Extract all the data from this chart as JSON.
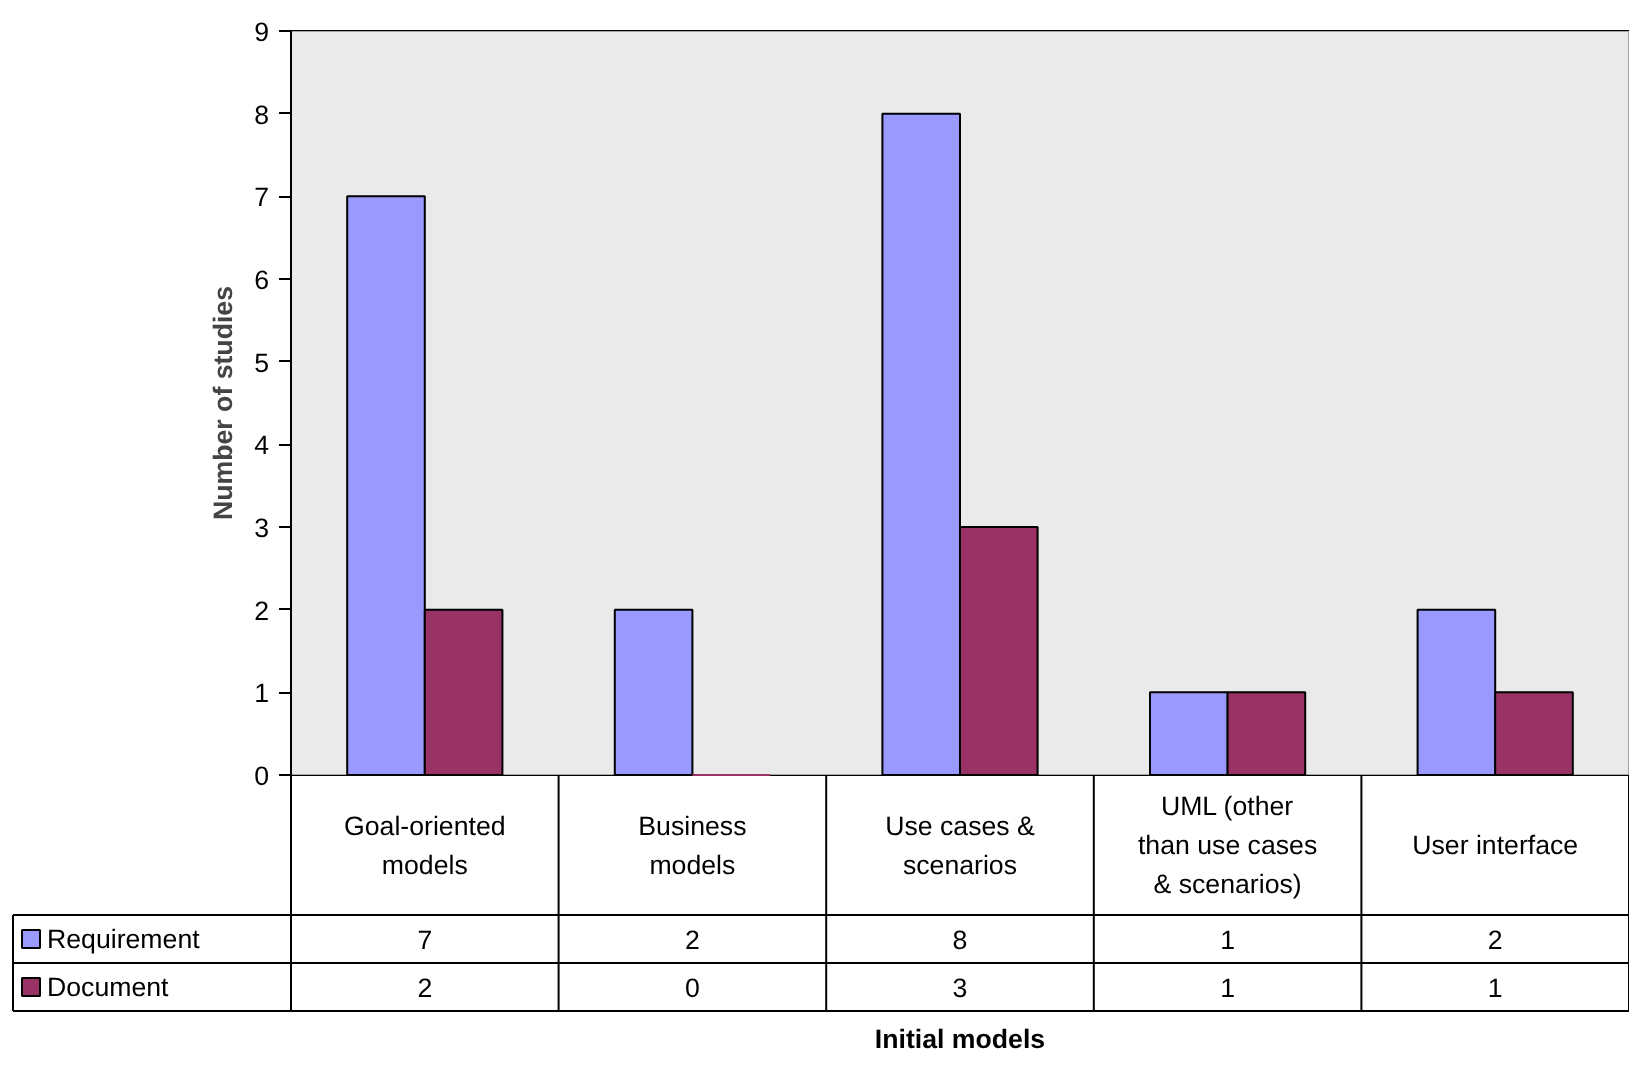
{
  "chart_data": {
    "type": "bar",
    "xlabel": "Initial models",
    "ylabel": "Number of studies",
    "categories": [
      "Goal-oriented models",
      "Business models",
      "Use cases & scenarios",
      "UML (other than use cases & scenarios)",
      "User interface"
    ],
    "series": [
      {
        "name": "Requirement",
        "color": "#9999ff",
        "values": [
          7,
          2,
          8,
          1,
          2
        ]
      },
      {
        "name": "Document",
        "color": "#993366",
        "values": [
          2,
          0,
          3,
          1,
          1
        ]
      }
    ],
    "ylim": [
      0,
      9
    ],
    "yticks": [
      0,
      1,
      2,
      3,
      4,
      5,
      6,
      7,
      8,
      9
    ],
    "grid": "y",
    "legend": "bottom",
    "data_labels": true
  }
}
